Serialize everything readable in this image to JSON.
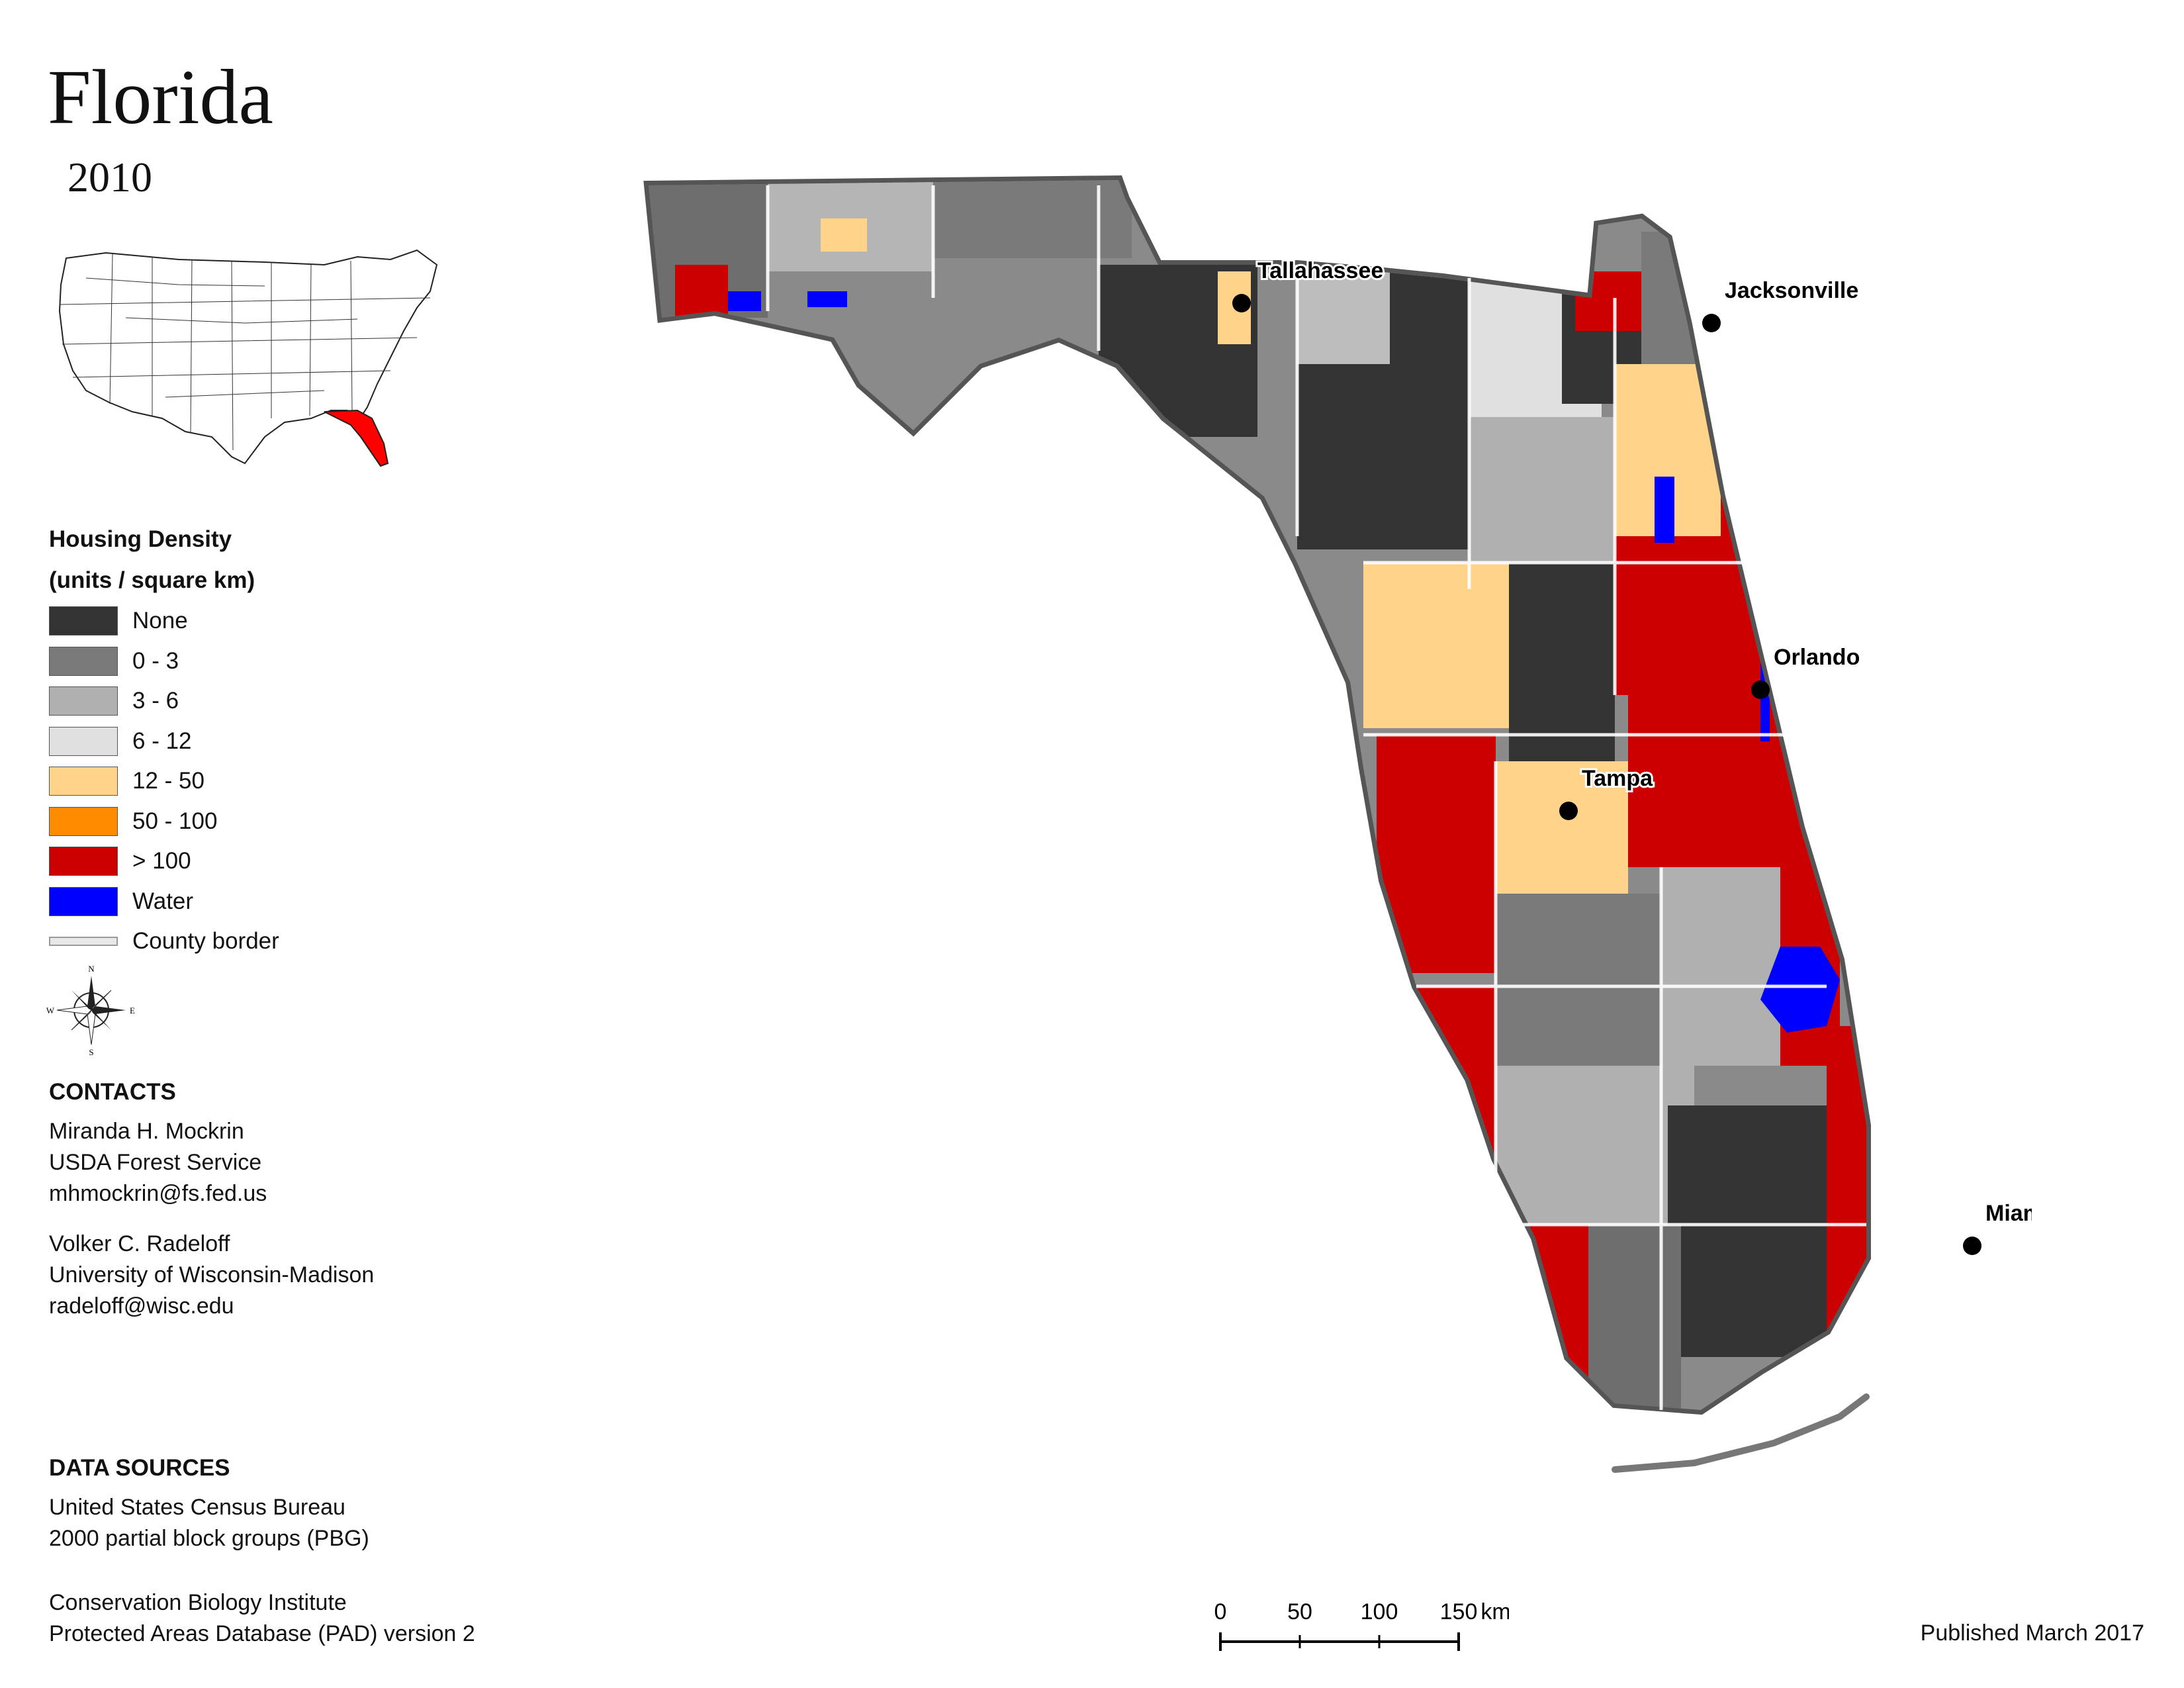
{
  "map": {
    "title": "Florida",
    "year": "2010",
    "inset_highlight_color": "#ff0000",
    "cities": [
      {
        "name": "Tallahassee"
      },
      {
        "name": "Jacksonville"
      },
      {
        "name": "Orlando"
      },
      {
        "name": "Tampa"
      },
      {
        "name": "Miami"
      }
    ]
  },
  "legend": {
    "title_line1": "Housing Density",
    "title_line2": "(units / square km)",
    "items": [
      {
        "label": "None",
        "color": "#333333"
      },
      {
        "label": "0 - 3",
        "color": "#7a7a7a"
      },
      {
        "label": "3 - 6",
        "color": "#b0b0b0"
      },
      {
        "label": "6 - 12",
        "color": "#e0e0e0"
      },
      {
        "label": "12 - 50",
        "color": "#ffd48a"
      },
      {
        "label": "50 - 100",
        "color": "#ff8c00"
      },
      {
        "label": "> 100",
        "color": "#cc0000"
      },
      {
        "label": "Water",
        "color": "#0000ff"
      },
      {
        "label": "County border",
        "color": "#e0e0e0"
      }
    ],
    "compass": {
      "n": "N",
      "s": "S",
      "e": "E",
      "w": "W"
    }
  },
  "contacts": {
    "heading": "CONTACTS",
    "people": [
      {
        "name": "Miranda H. Mockrin",
        "org": "USDA Forest Service",
        "email": "mhmockrin@fs.fed.us"
      },
      {
        "name": "Volker C. Radeloff",
        "org": "University of Wisconsin-Madison",
        "email": "radeloff@wisc.edu"
      }
    ]
  },
  "data_sources": {
    "heading": "DATA SOURCES",
    "sources": [
      {
        "line1": "United States Census Bureau",
        "line2": "2000 partial block groups (PBG)"
      },
      {
        "line1": "Conservation Biology Institute",
        "line2": "Protected Areas Database (PAD) version 2"
      }
    ]
  },
  "scale": {
    "ticks": [
      "0",
      "50",
      "100",
      "150"
    ],
    "unit": "km"
  },
  "footer": {
    "published": "Published March 2017"
  }
}
